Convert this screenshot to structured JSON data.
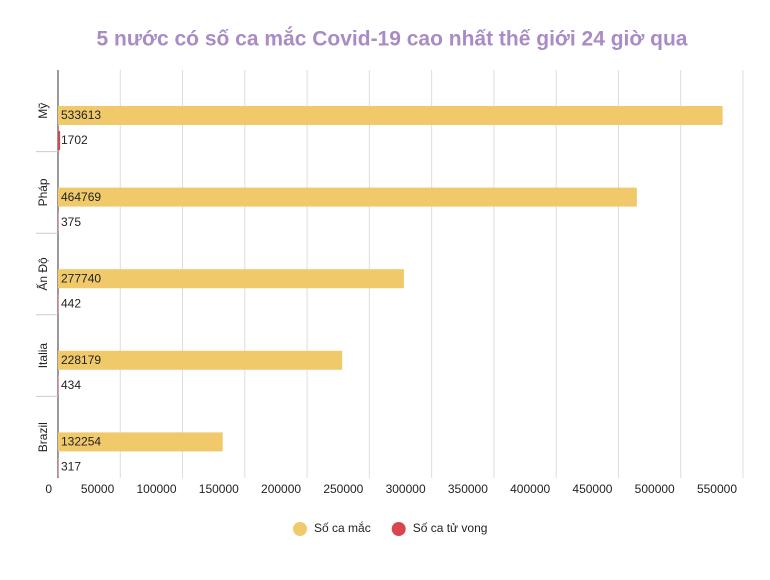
{
  "chart_data": {
    "type": "hbar",
    "title": "5 nước có số ca mắc Covid-19 cao nhất thế giới 24 giờ qua",
    "categories": [
      "Mỹ",
      "Pháp",
      "Ấn Độ",
      "Italia",
      "Brazil"
    ],
    "series": [
      {
        "name": "Số ca mắc",
        "color": "#f0c96a",
        "values": [
          533613,
          464769,
          277740,
          228179,
          132254
        ]
      },
      {
        "name": "Số ca tử vong",
        "color": "#d9454f",
        "values": [
          1702,
          375,
          442,
          434,
          317
        ]
      }
    ],
    "xlim": [
      0,
      550000
    ],
    "xticks": [
      0,
      50000,
      100000,
      150000,
      200000,
      250000,
      300000,
      350000,
      400000,
      450000,
      500000,
      550000
    ],
    "grid": true
  }
}
